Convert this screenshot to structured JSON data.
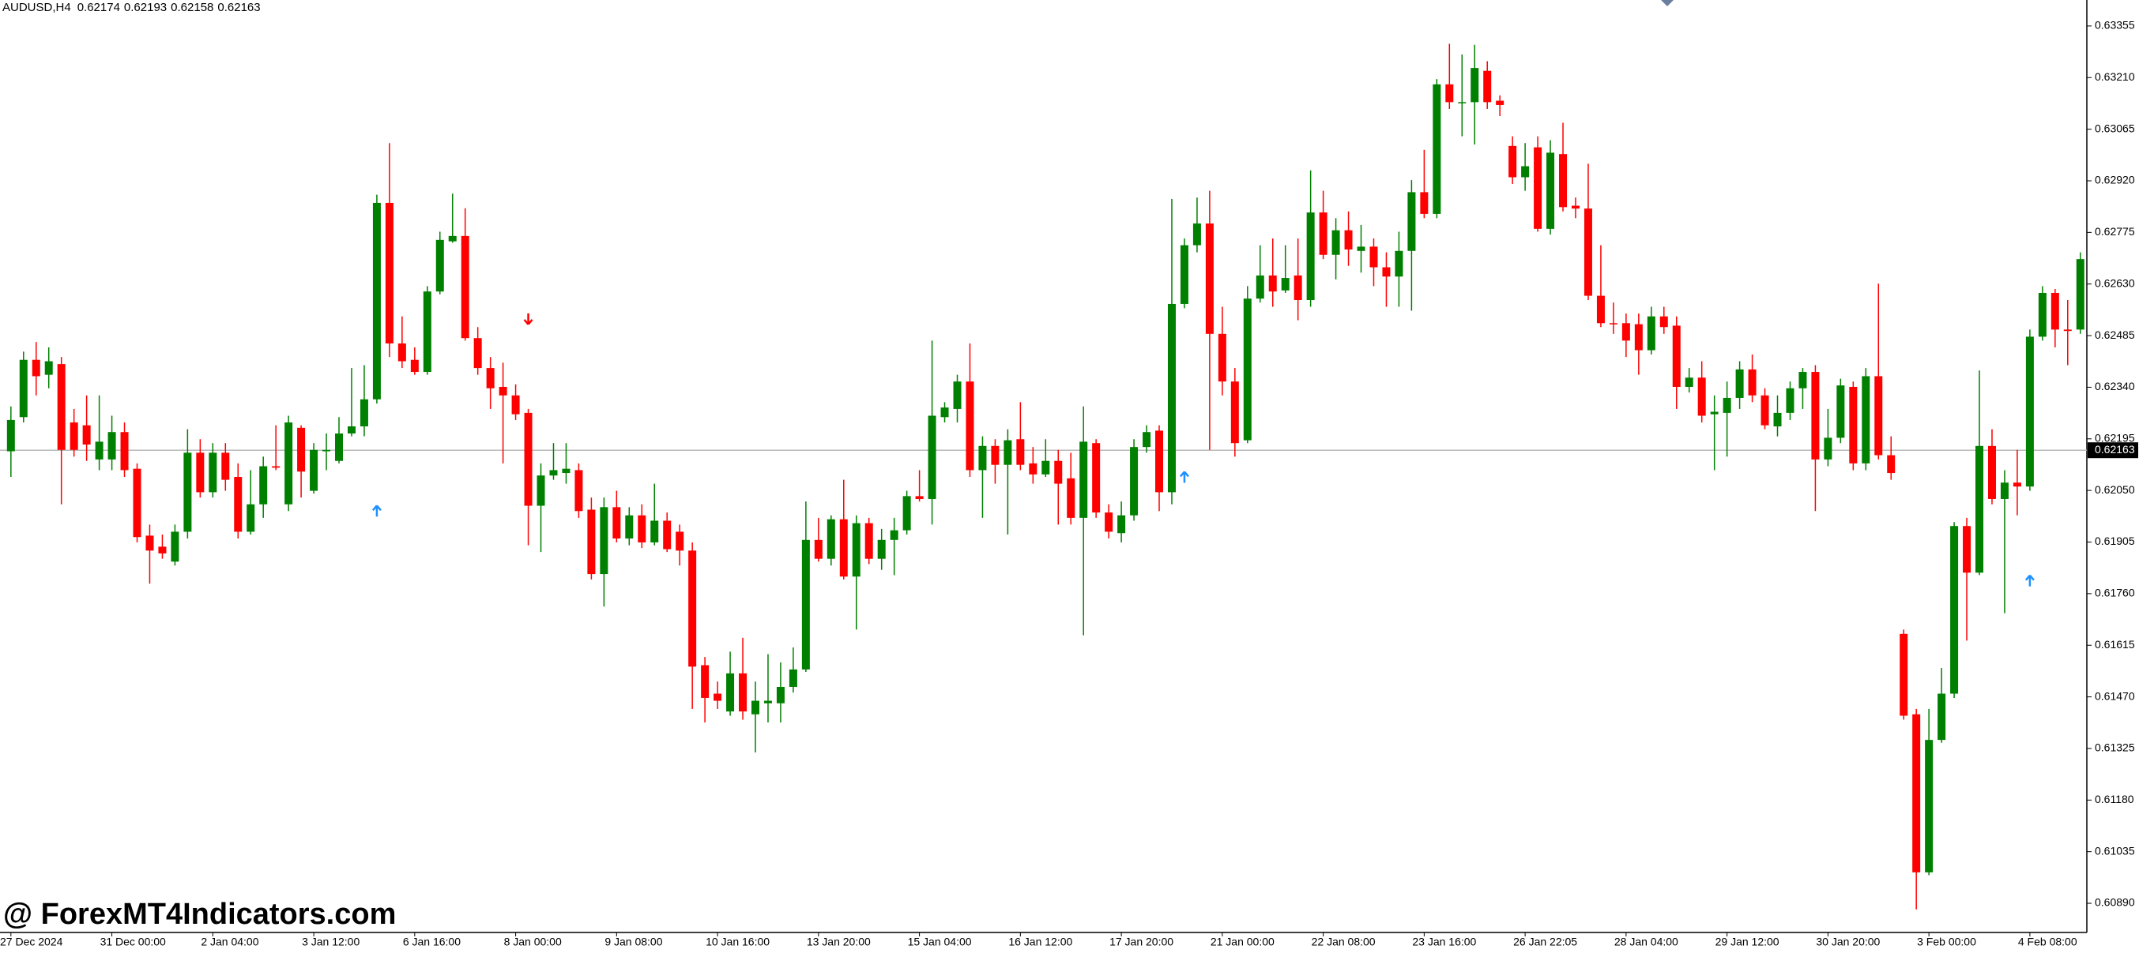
{
  "chart_data": {
    "type": "candlestick",
    "symbol": "AUDUSD,H4",
    "header_values": [
      0.62174,
      0.62193,
      0.62158,
      0.62163
    ],
    "watermark": "@ ForexMT4Indicators.com",
    "current_price": 0.62163,
    "up_color": "#008000",
    "down_color": "#ff0000",
    "ylim": [
      0.60808,
      0.63428
    ],
    "yticks": [
      0.63355,
      {
        "value": 0.6321,
        "label": "0.63210"
      },
      0.63065,
      {
        "value": 0.6292,
        "label": "0.62920"
      },
      0.62775,
      {
        "value": 0.6263,
        "label": "0.62630"
      },
      0.62485,
      {
        "value": 0.6234,
        "label": "0.62340"
      },
      0.62195,
      {
        "value": 0.6205,
        "label": "0.62050"
      },
      0.61905,
      {
        "value": 0.6176,
        "label": "0.61760"
      },
      0.61615,
      {
        "value": 0.6147,
        "label": "0.61470"
      },
      0.61325,
      {
        "value": 0.6118,
        "label": "0.61180"
      },
      0.61035,
      {
        "value": 0.6089,
        "label": "0.60890"
      }
    ],
    "categories": [
      "27 Dec 2024",
      null,
      null,
      null,
      null,
      null,
      null,
      null,
      "31 Dec 00:00",
      null,
      null,
      null,
      null,
      null,
      null,
      null,
      "2 Jan 04:00",
      null,
      null,
      null,
      null,
      null,
      null,
      null,
      "3 Jan 12:00",
      null,
      null,
      null,
      null,
      null,
      null,
      null,
      "6 Jan 16:00",
      null,
      null,
      null,
      null,
      null,
      null,
      null,
      "8 Jan 00:00",
      null,
      null,
      null,
      null,
      null,
      null,
      null,
      "9 Jan 08:00",
      null,
      null,
      null,
      null,
      null,
      null,
      null,
      "10 Jan 16:00",
      null,
      null,
      null,
      null,
      null,
      null,
      null,
      "13 Jan 20:00",
      null,
      null,
      null,
      null,
      null,
      null,
      null,
      "15 Jan 04:00",
      null,
      null,
      null,
      null,
      null,
      null,
      null,
      "16 Jan 12:00",
      null,
      null,
      null,
      null,
      null,
      null,
      null,
      "17 Jan 20:00",
      null,
      null,
      null,
      null,
      null,
      null,
      null,
      "21 Jan 00:00",
      null,
      null,
      null,
      null,
      null,
      null,
      null,
      "22 Jan 08:00",
      null,
      null,
      null,
      null,
      null,
      null,
      null,
      "23 Jan 16:00",
      null,
      null,
      null,
      null,
      null,
      null,
      null,
      "26 Jan 22:05",
      null,
      null,
      null,
      null,
      null,
      null,
      null,
      "28 Jan 04:00",
      null,
      null,
      null,
      null,
      null,
      null,
      null,
      "29 Jan 12:00",
      null,
      null,
      null,
      null,
      null,
      null,
      null,
      "30 Jan 20:00",
      null,
      null,
      null,
      null,
      null,
      null,
      null,
      "3 Feb 00:00",
      null,
      null,
      null,
      null,
      null,
      null,
      null,
      "4 Feb 08:00",
      null,
      null,
      null,
      null
    ],
    "open": [
      0.6216,
      0.62256,
      0.62417,
      0.62375,
      0.62405,
      0.62241,
      0.62233,
      0.62137,
      0.62137,
      0.62214,
      0.62111,
      0.61923,
      0.61892,
      0.6185,
      0.61934,
      0.62156,
      0.62045,
      0.62156,
      0.62088,
      0.61934,
      0.62011,
      0.62118,
      0.62011,
      0.62226,
      0.62049,
      0.6216,
      0.62133,
      0.6221,
      0.6223,
      0.62306,
      0.62858,
      0.62463,
      0.62417,
      0.62383,
      0.62609,
      0.6275,
      0.62765,
      0.62478,
      0.62394,
      0.62341,
      0.62317,
      0.62268,
      0.62007,
      0.62092,
      0.62099,
      0.62107,
      0.61996,
      0.61815,
      0.62003,
      0.61915,
      0.6198,
      0.61904,
      0.61965,
      0.61934,
      0.61881,
      0.61559,
      0.61479,
      0.61429,
      0.61536,
      0.61421,
      0.61452,
      0.61452,
      0.61498,
      0.61547,
      0.61911,
      0.61858,
      0.61969,
      0.61808,
      0.61958,
      0.61858,
      0.61911,
      0.61938,
      0.62034,
      0.62026,
      0.62256,
      0.62279,
      0.62356,
      0.62107,
      0.62175,
      0.62122,
      0.62194,
      0.62126,
      0.62095,
      0.62133,
      0.62084,
      0.61973,
      0.62183,
      0.61988,
      0.6193,
      0.6198,
      0.62172,
      0.62218,
      0.62045,
      0.62574,
      0.62739,
      0.628,
      0.6249,
      0.62356,
      0.62191,
      0.62589,
      0.62654,
      0.62612,
      0.62654,
      0.62585,
      0.62831,
      0.62712,
      0.62781,
      0.62723,
      0.62735,
      0.62677,
      0.62651,
      0.62723,
      0.62888,
      0.62827,
      0.63191,
      0.63141,
      0.63141,
      0.63229,
      0.63145,
      0.63018,
      0.6293,
      0.63014,
      0.62785,
      0.62995,
      0.6285,
      0.62842,
      0.62597,
      0.6252,
      0.6252,
      0.62517,
      0.62444,
      0.62539,
      0.62513,
      0.62341,
      0.62367,
      0.62264,
      0.62268,
      0.6231,
      0.6239,
      0.62317,
      0.6223,
      0.62268,
      0.62337,
      0.62383,
      0.62137,
      0.62198,
      0.62341,
      0.62126,
      0.62371,
      0.62149,
      0.61647,
      0.61421,
      0.60977,
      0.61349,
      0.61479,
      0.6195,
      0.61819,
      0.62175,
      0.62026,
      0.62072,
      0.62061,
      0.62482,
      0.62605,
      0.62502,
      0.62502
    ],
    "high": [
      0.62286,
      0.6244,
      0.62467,
      0.62452,
      0.62425,
      0.62279,
      0.62317,
      0.62317,
      0.6226,
      0.62241,
      0.62126,
      0.61954,
      0.61926,
      0.61954,
      0.62222,
      0.62194,
      0.62183,
      0.62183,
      0.62126,
      0.62107,
      0.62145,
      0.62233,
      0.6226,
      0.62233,
      0.62183,
      0.6221,
      0.62256,
      0.62394,
      0.62402,
      0.62881,
      0.63026,
      0.62539,
      0.62452,
      0.62624,
      0.62777,
      0.62884,
      0.62843,
      0.62509,
      0.62425,
      0.62409,
      0.62348,
      0.62279,
      0.62126,
      0.62183,
      0.62183,
      0.62126,
      0.6203,
      0.6203,
      0.62049,
      0.62003,
      0.62011,
      0.62069,
      0.61988,
      0.61954,
      0.61904,
      0.61582,
      0.61513,
      0.61597,
      0.61636,
      0.61513,
      0.6159,
      0.61567,
      0.61609,
      0.62019,
      0.61973,
      0.6198,
      0.6208,
      0.6198,
      0.61973,
      0.61942,
      0.61973,
      0.62049,
      0.62107,
      0.62471,
      0.62298,
      0.62375,
      0.62463,
      0.62202,
      0.62194,
      0.62222,
      0.62298,
      0.62172,
      0.62194,
      0.62164,
      0.62156,
      0.62286,
      0.62194,
      0.62011,
      0.62019,
      0.62194,
      0.62233,
      0.62233,
      0.62869,
      0.62758,
      0.62873,
      0.62892,
      0.62566,
      0.62394,
      0.62624,
      0.62739,
      0.62758,
      0.62739,
      0.62758,
      0.62949,
      0.62892,
      0.62815,
      0.62834,
      0.62796,
      0.62758,
      0.62719,
      0.62777,
      0.62922,
      0.63007,
      0.63206,
      0.63305,
      0.63275,
      0.63302,
      0.63256,
      0.6316,
      0.63045,
      0.63026,
      0.63045,
      0.63034,
      0.63083,
      0.62873,
      0.62968,
      0.62739,
      0.62578,
      0.62547,
      0.62547,
      0.62566,
      0.62566,
      0.62539,
      0.62394,
      0.62413,
      0.62317,
      0.62356,
      0.62413,
      0.62432,
      0.62337,
      0.62317,
      0.62356,
      0.62394,
      0.62402,
      0.62279,
      0.62364,
      0.62356,
      0.62394,
      0.62631,
      0.62202,
      0.61659,
      0.61436,
      0.61436,
      0.61551,
      0.61961,
      0.61973,
      0.62387,
      0.62222,
      0.62107,
      0.62164,
      0.62502,
      0.62624,
      0.62616,
      0.62585,
      0.62719
    ],
    "low": [
      0.62088,
      0.62241,
      0.62317,
      0.62337,
      0.62011,
      0.62145,
      0.62133,
      0.62107,
      0.62107,
      0.62088,
      0.61904,
      0.61788,
      0.61858,
      0.61839,
      0.61915,
      0.6203,
      0.6203,
      0.62049,
      0.61915,
      0.61926,
      0.61973,
      0.62107,
      0.61992,
      0.6203,
      0.62041,
      0.62107,
      0.62126,
      0.62202,
      0.62202,
      0.62294,
      0.62425,
      0.62394,
      0.62375,
      0.62375,
      0.62601,
      0.62746,
      0.62471,
      0.62375,
      0.62279,
      0.62126,
      0.62248,
      0.61896,
      0.61877,
      0.6208,
      0.62069,
      0.61973,
      0.618,
      0.61724,
      0.61904,
      0.61896,
      0.61888,
      0.61896,
      0.61877,
      0.61839,
      0.61436,
      0.61398,
      0.61436,
      0.61417,
      0.61406,
      0.61314,
      0.61398,
      0.61398,
      0.61482,
      0.6154,
      0.6185,
      0.61839,
      0.618,
      0.61659,
      0.61843,
      0.61827,
      0.61812,
      0.61926,
      0.62019,
      0.61954,
      0.62241,
      0.62241,
      0.62088,
      0.61973,
      0.62069,
      0.61926,
      0.62107,
      0.62069,
      0.62088,
      0.61954,
      0.61954,
      0.61643,
      0.61973,
      0.61915,
      0.61904,
      0.61965,
      0.62156,
      0.61992,
      0.62011,
      0.62562,
      0.62719,
      0.62164,
      0.62317,
      0.62145,
      0.62183,
      0.62578,
      0.62566,
      0.62605,
      0.62528,
      0.62566,
      0.627,
      0.62643,
      0.62681,
      0.62662,
      0.62624,
      0.62566,
      0.62566,
      0.62555,
      0.62815,
      0.62815,
      0.63122,
      0.63045,
      0.63022,
      0.63122,
      0.63102,
      0.62911,
      0.62892,
      0.62777,
      0.62769,
      0.62834,
      0.62815,
      0.62585,
      0.62509,
      0.6249,
      0.62425,
      0.62375,
      0.62432,
      0.6249,
      0.62279,
      0.62325,
      0.62241,
      0.62107,
      0.62145,
      0.62279,
      0.62298,
      0.62222,
      0.62202,
      0.62248,
      0.62279,
      0.61992,
      0.62118,
      0.62183,
      0.62107,
      0.62107,
      0.62137,
      0.6208,
      0.61406,
      0.60873,
      0.60969,
      0.61341,
      0.61467,
      0.61628,
      0.61812,
      0.62011,
      0.61705,
      0.6198,
      0.62049,
      0.62471,
      0.62452,
      0.62402,
      0.6249
    ],
    "close": [
      0.62248,
      0.62417,
      0.62371,
      0.62413,
      0.62164,
      0.62164,
      0.62179,
      0.62187,
      0.62214,
      0.62107,
      0.61919,
      0.61881,
      0.61873,
      0.61934,
      0.62156,
      0.62045,
      0.62156,
      0.6208,
      0.61934,
      0.62011,
      0.62118,
      0.62114,
      0.62241,
      0.62103,
      0.62164,
      0.62164,
      0.6221,
      0.6223,
      0.62306,
      0.62858,
      0.62463,
      0.62413,
      0.62383,
      0.62609,
      0.62754,
      0.62765,
      0.62478,
      0.62394,
      0.62337,
      0.62317,
      0.62264,
      0.62007,
      0.62092,
      0.62107,
      0.62111,
      0.61992,
      0.61815,
      0.62003,
      0.61915,
      0.6198,
      0.61904,
      0.61965,
      0.61885,
      0.61881,
      0.61555,
      0.61467,
      0.61459,
      0.61536,
      0.61429,
      0.61459,
      0.61459,
      0.61498,
      0.61547,
      0.61911,
      0.61858,
      0.61969,
      0.61808,
      0.61958,
      0.61858,
      0.61911,
      0.61938,
      0.62034,
      0.62026,
      0.6226,
      0.62283,
      0.62356,
      0.62107,
      0.62175,
      0.62122,
      0.62191,
      0.62122,
      0.62095,
      0.62133,
      0.62069,
      0.61973,
      0.62187,
      0.61988,
      0.61934,
      0.6198,
      0.62172,
      0.62214,
      0.62045,
      0.62574,
      0.62739,
      0.628,
      0.6249,
      0.62356,
      0.62183,
      0.62589,
      0.62654,
      0.62609,
      0.62647,
      0.62585,
      0.62831,
      0.62712,
      0.62781,
      0.62727,
      0.62735,
      0.62677,
      0.62651,
      0.62723,
      0.62888,
      0.62827,
      0.63191,
      0.63141,
      0.63141,
      0.63237,
      0.63141,
      0.63133,
      0.6293,
      0.62961,
      0.62785,
      0.62999,
      0.62846,
      0.62842,
      0.62597,
      0.6252,
      0.62517,
      0.62471,
      0.62444,
      0.62539,
      0.62509,
      0.62341,
      0.62367,
      0.6226,
      0.62271,
      0.6231,
      0.6239,
      0.62317,
      0.62233,
      0.62268,
      0.62337,
      0.62383,
      0.62137,
      0.62198,
      0.62345,
      0.62126,
      0.62371,
      0.62149,
      0.62099,
      0.61417,
      0.60977,
      0.61349,
      0.61479,
      0.6195,
      0.61819,
      0.62175,
      0.62026,
      0.62072,
      0.62061,
      0.62482,
      0.62605,
      0.62502,
      0.62498,
      0.627
    ],
    "arrows": [
      {
        "index": 29,
        "price": 0.61992,
        "direction": "up",
        "color": "#1e90ff"
      },
      {
        "index": 41,
        "price": 0.62532,
        "direction": "down",
        "color": "#ff0000"
      },
      {
        "index": 93,
        "price": 0.62087,
        "direction": "up",
        "color": "#1e90ff"
      },
      {
        "index": 160,
        "price": 0.61796,
        "direction": "up",
        "color": "#1e90ff"
      }
    ]
  }
}
